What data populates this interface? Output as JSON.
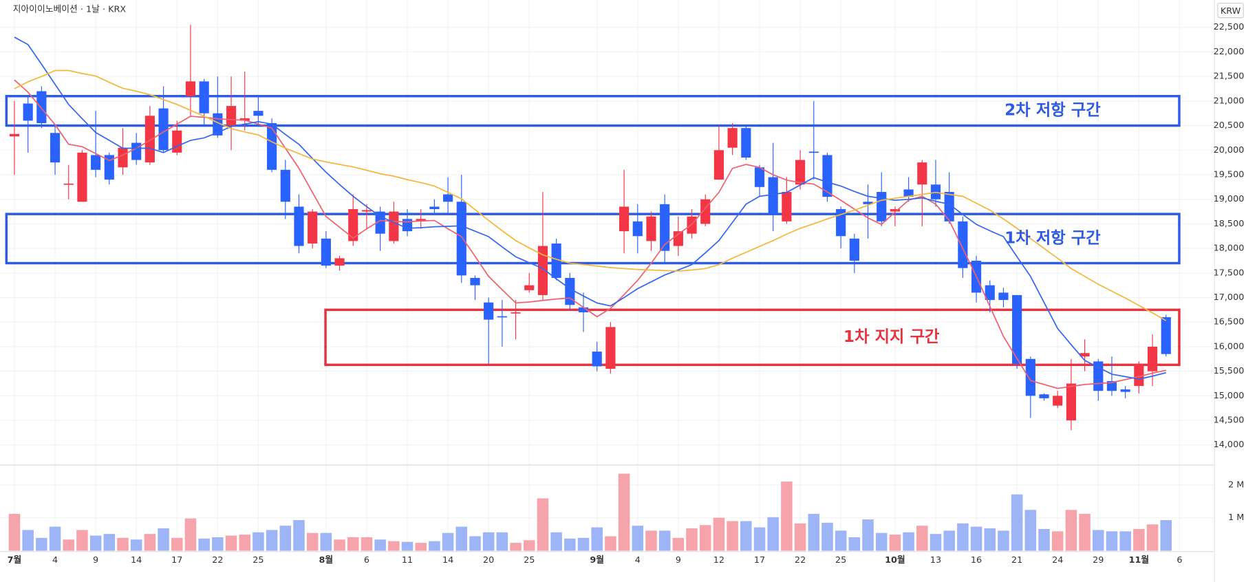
{
  "chart_data": {
    "type": "candlestick",
    "title": "지아이이노베이션 · 1날 · KRX",
    "currency": "KRW",
    "categories": [
      "7월",
      null,
      null,
      "4",
      null,
      null,
      "9",
      null,
      null,
      "14",
      null,
      null,
      "17",
      null,
      null,
      "22",
      null,
      null,
      "25",
      null,
      null,
      null,
      null,
      "8월",
      null,
      null,
      "6",
      null,
      null,
      "11",
      null,
      null,
      "14",
      null,
      null,
      "20",
      null,
      null,
      "25",
      null,
      null,
      null,
      null,
      "9월",
      null,
      null,
      "4",
      null,
      null,
      "9",
      null,
      null,
      "12",
      null,
      null,
      "17",
      null,
      null,
      "22",
      null,
      null,
      "25",
      null,
      null,
      null,
      "10월",
      null,
      null,
      "13",
      null,
      null,
      "16",
      null,
      null,
      "21",
      null,
      null,
      "24",
      null,
      null,
      "29",
      null,
      null,
      "11월",
      null,
      null,
      "6"
    ],
    "open": [
      20280,
      20950,
      21200,
      20350,
      19300,
      18950,
      19900,
      19900,
      19650,
      20150,
      19750,
      20850,
      19950,
      21100,
      21400,
      20750,
      20500,
      20600,
      20800,
      20550,
      19600,
      18850,
      18100,
      18200,
      17650,
      18150,
      18750,
      18750,
      18150,
      18600,
      18550,
      18850,
      19100,
      18950,
      17400,
      16900,
      16620,
      16680,
      17150,
      17050,
      18100,
      17400,
      16800,
      15900,
      15550,
      18350,
      18550,
      18150,
      18900,
      18050,
      18300,
      18500,
      19400,
      20050,
      20450,
      19650,
      19450,
      18550,
      19300,
      19970,
      19900,
      18800,
      18200,
      18950,
      19150,
      18750,
      19200,
      19300,
      19300,
      19150,
      18550,
      17750,
      17250,
      17100,
      17050,
      15750,
      15030,
      14800,
      14500,
      15800,
      15700,
      15300,
      15130,
      15200,
      15500,
      16600,
      null
    ],
    "high": [
      21000,
      21100,
      21300,
      20500,
      19700,
      20000,
      20800,
      19950,
      20450,
      20350,
      20900,
      21300,
      20600,
      22550,
      21450,
      21500,
      21500,
      21600,
      21100,
      20650,
      19800,
      19100,
      18800,
      18350,
      17850,
      19100,
      18900,
      18850,
      18950,
      18800,
      18800,
      19000,
      19450,
      19500,
      17450,
      17000,
      16950,
      16950,
      17500,
      19150,
      18200,
      17500,
      17100,
      16100,
      16500,
      19600,
      18900,
      18750,
      19100,
      18650,
      18800,
      19100,
      20500,
      20550,
      20500,
      19700,
      20150,
      19450,
      20000,
      21000,
      19950,
      18850,
      18300,
      19300,
      19550,
      18850,
      19450,
      19800,
      19800,
      19550,
      18650,
      17850,
      17350,
      17200,
      17050,
      15800,
      15050,
      15100,
      15750,
      16150,
      15750,
      15800,
      15200,
      15700,
      16250,
      16650,
      null
    ],
    "low": [
      19500,
      19950,
      20450,
      19500,
      19000,
      18950,
      19450,
      19300,
      19500,
      19700,
      19700,
      19950,
      19900,
      20700,
      20500,
      20250,
      20000,
      20400,
      20500,
      19550,
      18600,
      17900,
      18000,
      17600,
      17550,
      18050,
      18400,
      17950,
      18100,
      18250,
      18400,
      18700,
      18700,
      17300,
      16950,
      15650,
      16000,
      16150,
      17100,
      16950,
      17350,
      16750,
      16300,
      15500,
      15450,
      17900,
      17900,
      17950,
      17700,
      17850,
      18200,
      18450,
      19400,
      19900,
      19800,
      19050,
      18350,
      18500,
      19200,
      19400,
      18950,
      18000,
      17500,
      18200,
      18450,
      18450,
      18950,
      18450,
      18850,
      18500,
      17400,
      16900,
      16700,
      16800,
      15550,
      14550,
      14900,
      14750,
      14300,
      15500,
      14900,
      15000,
      14950,
      15050,
      15200,
      15800,
      null
    ],
    "close": [
      20330,
      20600,
      20550,
      19750,
      19320,
      19950,
      19600,
      19400,
      20050,
      19800,
      20700,
      20000,
      20400,
      21400,
      20750,
      20300,
      20900,
      20650,
      20700,
      19600,
      18950,
      18050,
      18750,
      17650,
      17800,
      18800,
      18780,
      18300,
      18750,
      18350,
      18600,
      18800,
      18950,
      17450,
      17250,
      16550,
      16600,
      16700,
      17250,
      18050,
      17400,
      16850,
      16700,
      15600,
      16400,
      18850,
      18250,
      18650,
      17950,
      18350,
      18650,
      19000,
      20000,
      20450,
      19850,
      19250,
      18700,
      19150,
      19800,
      19950,
      19050,
      18250,
      17750,
      18900,
      18550,
      18800,
      19050,
      19750,
      19000,
      18550,
      17600,
      17100,
      16950,
      16950,
      15650,
      15000,
      14950,
      15000,
      15250,
      15870,
      15100,
      15100,
      15080,
      15650,
      16000,
      15850,
      null
    ],
    "up_color": "#f23645",
    "down_color": "#2962ff",
    "ylim": [
      13625,
      22975
    ],
    "yticks": [
      {
        "value": 14000,
        "label": "14,000"
      },
      {
        "value": 14500,
        "label": "14,500"
      },
      {
        "value": 15000,
        "label": "15,000"
      },
      {
        "value": 15500,
        "label": "15,500"
      },
      {
        "value": 16000,
        "label": "16,000"
      },
      {
        "value": 16500,
        "label": "16,500"
      },
      {
        "value": 17000,
        "label": "17,000"
      },
      {
        "value": 17500,
        "label": "17,500"
      },
      {
        "value": 18000,
        "label": "18,000"
      },
      {
        "value": 18500,
        "label": "18,500"
      },
      {
        "value": 19000,
        "label": "19,000"
      },
      {
        "value": 19500,
        "label": "19,500"
      },
      {
        "value": 20000,
        "label": "20,000"
      },
      {
        "value": 20500,
        "label": "20,500"
      },
      {
        "value": 21000,
        "label": "21,000"
      },
      {
        "value": 21500,
        "label": "21,500"
      },
      {
        "value": 22000,
        "label": "22,000"
      },
      {
        "value": 22500,
        "label": "22,500"
      }
    ],
    "grid": true,
    "series": [
      {
        "color": "#f0606e",
        "values": [
          21430,
          21180,
          20850,
          20520,
          20120,
          20070,
          19930,
          19790,
          19900,
          20040,
          20200,
          20370,
          20530,
          20690,
          20670,
          20640,
          20620,
          20610,
          20530,
          20450,
          20040,
          19630,
          19140,
          18650,
          18430,
          18210,
          18400,
          18570,
          18550,
          18540,
          18560,
          18570,
          18400,
          18240,
          17840,
          17430,
          17160,
          16890,
          16910,
          16940,
          16970,
          16990,
          16800,
          16610,
          16780,
          17060,
          17350,
          17700,
          18080,
          18290,
          18490,
          18820,
          19140,
          19630,
          19710,
          19650,
          19500,
          19390,
          19340,
          19310,
          19150,
          18980,
          18800,
          18620,
          18490,
          18740,
          18980,
          19060,
          18900,
          18570,
          18000,
          17430,
          16820,
          16210,
          15760,
          15310,
          15230,
          15150,
          15190,
          15230,
          15250,
          15270,
          15330,
          15390,
          15460,
          15520,
          null
        ]
      },
      {
        "color": "#3566ee",
        "values": [
          22300,
          22150,
          21750,
          21340,
          20930,
          20640,
          20360,
          20200,
          20040,
          20040,
          20040,
          19950,
          20080,
          20200,
          20250,
          20360,
          20480,
          20530,
          20580,
          20530,
          20320,
          20120,
          19830,
          19550,
          19300,
          19060,
          18850,
          18650,
          18530,
          18410,
          18420,
          18440,
          18450,
          18460,
          18350,
          18240,
          18030,
          17830,
          17710,
          17590,
          17380,
          17180,
          17030,
          16890,
          16830,
          17000,
          17180,
          17320,
          17460,
          17560,
          17670,
          17910,
          18160,
          18530,
          18900,
          19060,
          19100,
          19140,
          19290,
          19440,
          19350,
          19270,
          19160,
          19060,
          19020,
          18980,
          19000,
          19030,
          18960,
          18900,
          18690,
          18490,
          18360,
          18240,
          17830,
          17430,
          16900,
          16370,
          16040,
          15720,
          15580,
          15440,
          15390,
          15340,
          15400,
          15470,
          null
        ]
      },
      {
        "color": "#f4b73e",
        "values": [
          21250,
          21390,
          21500,
          21620,
          21620,
          21560,
          21510,
          21380,
          21260,
          21200,
          21130,
          21030,
          20930,
          20810,
          20690,
          20560,
          20440,
          20370,
          20310,
          20170,
          20040,
          19930,
          19820,
          19760,
          19710,
          19660,
          19590,
          19520,
          19470,
          19400,
          19340,
          19270,
          19140,
          19010,
          18790,
          18570,
          18360,
          18160,
          18010,
          17870,
          17780,
          17700,
          17670,
          17640,
          17610,
          17590,
          17570,
          17560,
          17550,
          17540,
          17560,
          17590,
          17670,
          17800,
          17920,
          18040,
          18160,
          18290,
          18410,
          18500,
          18600,
          18690,
          18780,
          18880,
          18980,
          19020,
          19060,
          19100,
          19140,
          19100,
          19060,
          18920,
          18780,
          18600,
          18410,
          18200,
          18000,
          17800,
          17590,
          17430,
          17270,
          17130,
          16990,
          16840,
          16690,
          16530,
          null
        ]
      }
    ],
    "volume": {
      "values": [
        1120000,
        630000,
        390000,
        730000,
        340000,
        630000,
        460000,
        510000,
        390000,
        340000,
        510000,
        680000,
        390000,
        980000,
        370000,
        410000,
        460000,
        490000,
        560000,
        630000,
        760000,
        930000,
        540000,
        540000,
        340000,
        410000,
        410000,
        340000,
        290000,
        270000,
        240000,
        290000,
        540000,
        730000,
        440000,
        560000,
        560000,
        240000,
        320000,
        1590000,
        560000,
        370000,
        390000,
        710000,
        440000,
        2340000,
        760000,
        610000,
        610000,
        390000,
        680000,
        780000,
        1000000,
        900000,
        900000,
        710000,
        1020000,
        2100000,
        830000,
        1120000,
        850000,
        610000,
        410000,
        950000,
        540000,
        490000,
        560000,
        760000,
        510000,
        610000,
        830000,
        730000,
        680000,
        610000,
        1710000,
        1240000,
        660000,
        590000,
        1240000,
        1120000,
        630000,
        590000,
        590000,
        660000,
        800000,
        930000,
        null
      ],
      "up_color": "#f7a3ab",
      "down_color": "#9db4f6",
      "ylim": [
        0,
        2410000
      ],
      "yticks": [
        {
          "value": 1000000,
          "label": "1 M"
        },
        {
          "value": 2000000,
          "label": "2 M"
        }
      ]
    },
    "zones": [
      {
        "label": "2차 저항 구간",
        "top": 21100,
        "bottom": 20500,
        "color": "#2d5be3"
      },
      {
        "label": "1차 저항 구간",
        "top": 18700,
        "bottom": 17700,
        "color": "#2d5be3"
      },
      {
        "label": "1차 지지 구간",
        "top": 16750,
        "bottom": 15630,
        "color": "#e5333f"
      }
    ]
  }
}
